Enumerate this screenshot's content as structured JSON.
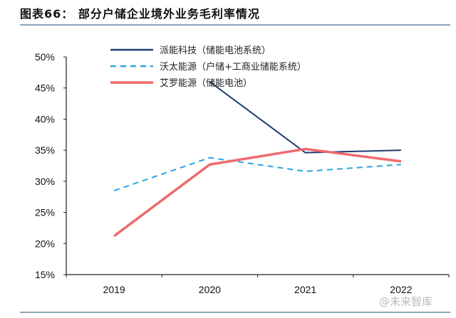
{
  "title": "图表66： 部分户储企业境外业务毛利率情况",
  "watermark": "@未来智库",
  "chart_data": {
    "type": "line",
    "categories": [
      "2019",
      "2020",
      "2021",
      "2022"
    ],
    "ylim": [
      15,
      50
    ],
    "yticks": [
      "15%",
      "20%",
      "25%",
      "30%",
      "35%",
      "40%",
      "45%",
      "50%"
    ],
    "grid": false,
    "legend": "top",
    "series": [
      {
        "name": "派能科技（储能电池系统）",
        "values": [
          null,
          46,
          34.6,
          35.0
        ],
        "color": "#1f3b6e",
        "dash": false
      },
      {
        "name": "沃太能源（户储+工商业储能系统）",
        "values": [
          28.5,
          33.8,
          31.6,
          32.7
        ],
        "color": "#2aa5e0",
        "dash": true
      },
      {
        "name": "艾罗能源（储能电池）",
        "values": [
          21.2,
          32.7,
          35.2,
          33.2
        ],
        "color": "#ef6a6e",
        "dash": false
      }
    ]
  }
}
